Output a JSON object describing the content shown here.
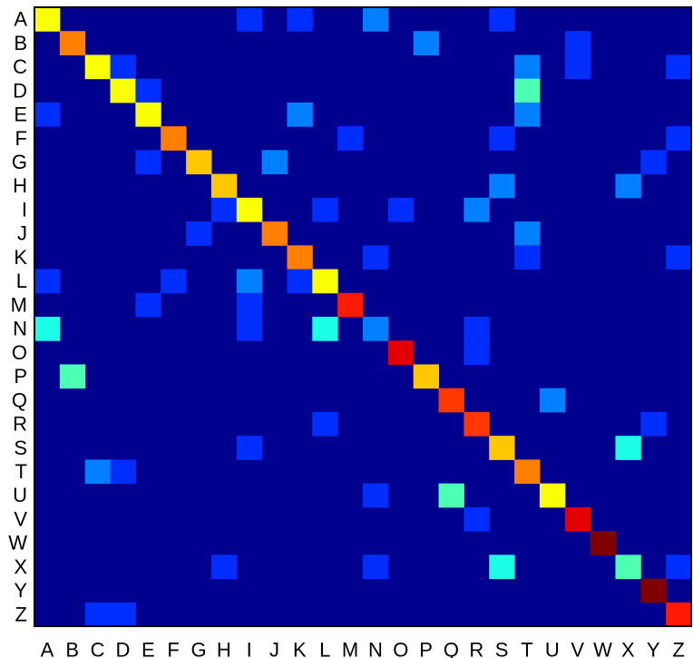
{
  "chart_data": {
    "type": "heatmap",
    "title": "",
    "xlabel": "",
    "ylabel": "",
    "colormap": "jet",
    "background_color": "#00008f",
    "grid": false,
    "legend": "none",
    "row_labels": [
      "A",
      "B",
      "C",
      "D",
      "E",
      "F",
      "G",
      "H",
      "I",
      "J",
      "K",
      "L",
      "M",
      "N",
      "O",
      "P",
      "Q",
      "R",
      "S",
      "T",
      "U",
      "V",
      "W",
      "X",
      "Y",
      "Z"
    ],
    "col_labels": [
      "A",
      "B",
      "C",
      "D",
      "E",
      "F",
      "G",
      "H",
      "I",
      "J",
      "K",
      "L",
      "M",
      "N",
      "O",
      "P",
      "Q",
      "R",
      "S",
      "T",
      "U",
      "V",
      "W",
      "X",
      "Y",
      "Z"
    ],
    "max_value": 1,
    "cells": [
      {
        "row": "A",
        "col": "A",
        "value": 0.62
      },
      {
        "row": "A",
        "col": "I",
        "value": 0.17
      },
      {
        "row": "A",
        "col": "K",
        "value": 0.17
      },
      {
        "row": "A",
        "col": "N",
        "value": 0.25
      },
      {
        "row": "A",
        "col": "S",
        "value": 0.17
      },
      {
        "row": "B",
        "col": "B",
        "value": 0.75
      },
      {
        "row": "B",
        "col": "P",
        "value": 0.25
      },
      {
        "row": "B",
        "col": "V",
        "value": 0.17
      },
      {
        "row": "C",
        "col": "C",
        "value": 0.62
      },
      {
        "row": "C",
        "col": "D",
        "value": 0.17
      },
      {
        "row": "C",
        "col": "T",
        "value": 0.25
      },
      {
        "row": "C",
        "col": "V",
        "value": 0.17
      },
      {
        "row": "C",
        "col": "Z",
        "value": 0.17
      },
      {
        "row": "D",
        "col": "D",
        "value": 0.62
      },
      {
        "row": "D",
        "col": "E",
        "value": 0.17
      },
      {
        "row": "D",
        "col": "T",
        "value": 0.45
      },
      {
        "row": "E",
        "col": "A",
        "value": 0.17
      },
      {
        "row": "E",
        "col": "E",
        "value": 0.62
      },
      {
        "row": "E",
        "col": "K",
        "value": 0.25
      },
      {
        "row": "E",
        "col": "T",
        "value": 0.25
      },
      {
        "row": "F",
        "col": "F",
        "value": 0.75
      },
      {
        "row": "F",
        "col": "M",
        "value": 0.17
      },
      {
        "row": "F",
        "col": "S",
        "value": 0.17
      },
      {
        "row": "F",
        "col": "Z",
        "value": 0.17
      },
      {
        "row": "G",
        "col": "E",
        "value": 0.17
      },
      {
        "row": "G",
        "col": "G",
        "value": 0.68
      },
      {
        "row": "G",
        "col": "J",
        "value": 0.25
      },
      {
        "row": "G",
        "col": "Y",
        "value": 0.17
      },
      {
        "row": "H",
        "col": "H",
        "value": 0.68
      },
      {
        "row": "H",
        "col": "S",
        "value": 0.25
      },
      {
        "row": "H",
        "col": "X",
        "value": 0.25
      },
      {
        "row": "I",
        "col": "H",
        "value": 0.17
      },
      {
        "row": "I",
        "col": "I",
        "value": 0.62
      },
      {
        "row": "I",
        "col": "L",
        "value": 0.17
      },
      {
        "row": "I",
        "col": "O",
        "value": 0.17
      },
      {
        "row": "I",
        "col": "R",
        "value": 0.25
      },
      {
        "row": "J",
        "col": "G",
        "value": 0.17
      },
      {
        "row": "J",
        "col": "J",
        "value": 0.75
      },
      {
        "row": "J",
        "col": "T",
        "value": 0.25
      },
      {
        "row": "K",
        "col": "K",
        "value": 0.75
      },
      {
        "row": "K",
        "col": "N",
        "value": 0.17
      },
      {
        "row": "K",
        "col": "T",
        "value": 0.17
      },
      {
        "row": "K",
        "col": "Z",
        "value": 0.17
      },
      {
        "row": "L",
        "col": "A",
        "value": 0.17
      },
      {
        "row": "L",
        "col": "F",
        "value": 0.17
      },
      {
        "row": "L",
        "col": "I",
        "value": 0.25
      },
      {
        "row": "L",
        "col": "K",
        "value": 0.17
      },
      {
        "row": "L",
        "col": "L",
        "value": 0.62
      },
      {
        "row": "M",
        "col": "E",
        "value": 0.17
      },
      {
        "row": "M",
        "col": "I",
        "value": 0.17
      },
      {
        "row": "M",
        "col": "M",
        "value": 0.85
      },
      {
        "row": "N",
        "col": "A",
        "value": 0.4
      },
      {
        "row": "N",
        "col": "I",
        "value": 0.17
      },
      {
        "row": "N",
        "col": "L",
        "value": 0.4
      },
      {
        "row": "N",
        "col": "N",
        "value": 0.25
      },
      {
        "row": "N",
        "col": "R",
        "value": 0.17
      },
      {
        "row": "O",
        "col": "O",
        "value": 0.9
      },
      {
        "row": "O",
        "col": "R",
        "value": 0.17
      },
      {
        "row": "P",
        "col": "B",
        "value": 0.45
      },
      {
        "row": "P",
        "col": "P",
        "value": 0.68
      },
      {
        "row": "Q",
        "col": "Q",
        "value": 0.82
      },
      {
        "row": "Q",
        "col": "U",
        "value": 0.25
      },
      {
        "row": "R",
        "col": "L",
        "value": 0.17
      },
      {
        "row": "R",
        "col": "R",
        "value": 0.82
      },
      {
        "row": "R",
        "col": "Y",
        "value": 0.17
      },
      {
        "row": "S",
        "col": "I",
        "value": 0.17
      },
      {
        "row": "S",
        "col": "S",
        "value": 0.68
      },
      {
        "row": "S",
        "col": "X",
        "value": 0.4
      },
      {
        "row": "T",
        "col": "C",
        "value": 0.25
      },
      {
        "row": "T",
        "col": "D",
        "value": 0.17
      },
      {
        "row": "T",
        "col": "T",
        "value": 0.75
      },
      {
        "row": "U",
        "col": "N",
        "value": 0.17
      },
      {
        "row": "U",
        "col": "Q",
        "value": 0.45
      },
      {
        "row": "U",
        "col": "U",
        "value": 0.62
      },
      {
        "row": "V",
        "col": "R",
        "value": 0.17
      },
      {
        "row": "V",
        "col": "V",
        "value": 0.9
      },
      {
        "row": "W",
        "col": "W",
        "value": 1.0
      },
      {
        "row": "X",
        "col": "H",
        "value": 0.17
      },
      {
        "row": "X",
        "col": "N",
        "value": 0.17
      },
      {
        "row": "X",
        "col": "S",
        "value": 0.4
      },
      {
        "row": "X",
        "col": "X",
        "value": 0.45
      },
      {
        "row": "X",
        "col": "Z",
        "value": 0.17
      },
      {
        "row": "Y",
        "col": "Y",
        "value": 1.0
      },
      {
        "row": "Z",
        "col": "C",
        "value": 0.17
      },
      {
        "row": "Z",
        "col": "D",
        "value": 0.17
      },
      {
        "row": "Z",
        "col": "Z",
        "value": 0.85
      }
    ]
  }
}
